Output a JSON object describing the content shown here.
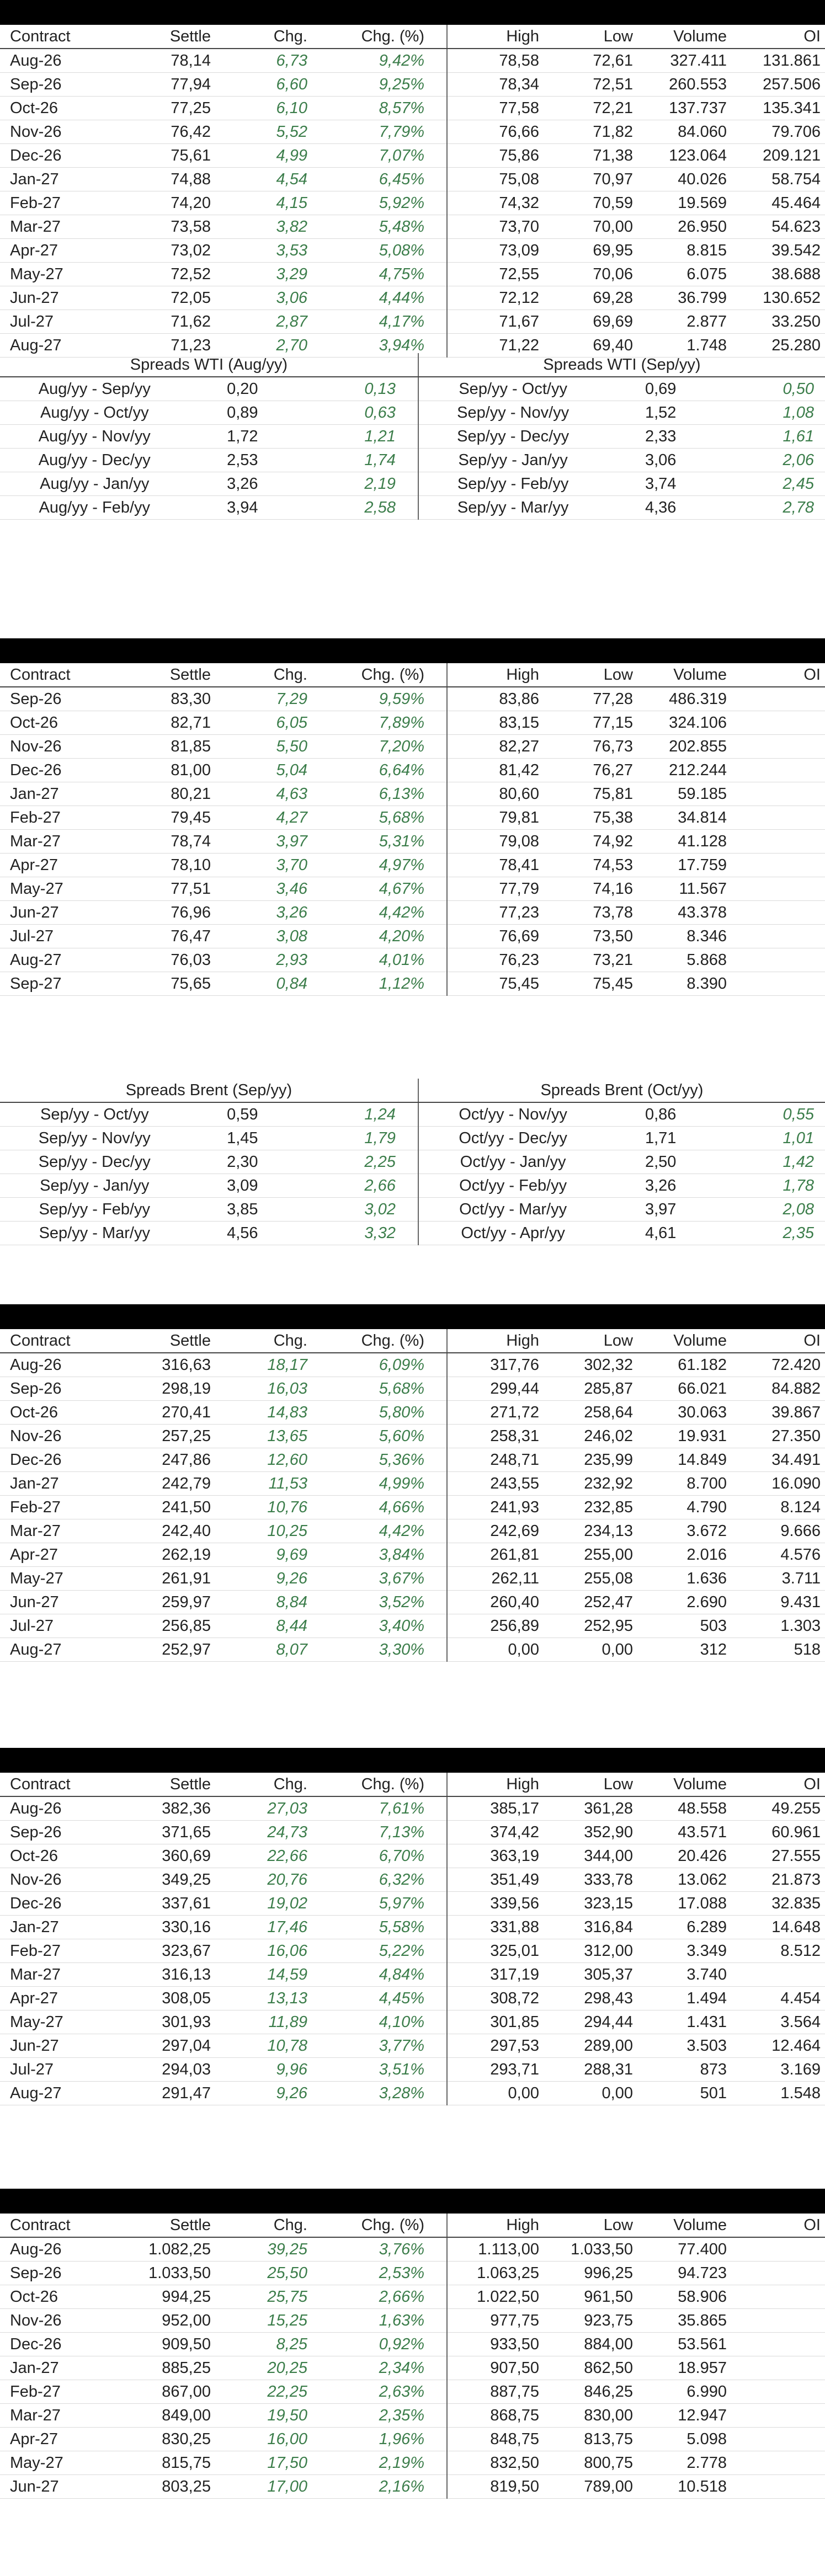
{
  "headers": [
    "Contract",
    "Settle",
    "Chg.",
    "Chg. (%)",
    "High",
    "Low",
    "Volume",
    "OI"
  ],
  "wti": {
    "rows": [
      [
        "Aug-26",
        "78,14",
        "6,73",
        "9,42%",
        "78,58",
        "72,61",
        "327.411",
        "131.861"
      ],
      [
        "Sep-26",
        "77,94",
        "6,60",
        "9,25%",
        "78,34",
        "72,51",
        "260.553",
        "257.506"
      ],
      [
        "Oct-26",
        "77,25",
        "6,10",
        "8,57%",
        "77,58",
        "72,21",
        "137.737",
        "135.341"
      ],
      [
        "Nov-26",
        "76,42",
        "5,52",
        "7,79%",
        "76,66",
        "71,82",
        "84.060",
        "79.706"
      ],
      [
        "Dec-26",
        "75,61",
        "4,99",
        "7,07%",
        "75,86",
        "71,38",
        "123.064",
        "209.121"
      ],
      [
        "Jan-27",
        "74,88",
        "4,54",
        "6,45%",
        "75,08",
        "70,97",
        "40.026",
        "58.754"
      ],
      [
        "Feb-27",
        "74,20",
        "4,15",
        "5,92%",
        "74,32",
        "70,59",
        "19.569",
        "45.464"
      ],
      [
        "Mar-27",
        "73,58",
        "3,82",
        "5,48%",
        "73,70",
        "70,00",
        "26.950",
        "54.623"
      ],
      [
        "Apr-27",
        "73,02",
        "3,53",
        "5,08%",
        "73,09",
        "69,95",
        "8.815",
        "39.542"
      ],
      [
        "May-27",
        "72,52",
        "3,29",
        "4,75%",
        "72,55",
        "70,06",
        "6.075",
        "38.688"
      ],
      [
        "Jun-27",
        "72,05",
        "3,06",
        "4,44%",
        "72,12",
        "69,28",
        "36.799",
        "130.652"
      ],
      [
        "Jul-27",
        "71,62",
        "2,87",
        "4,17%",
        "71,67",
        "69,69",
        "2.877",
        "33.250"
      ],
      [
        "Aug-27",
        "71,23",
        "2,70",
        "3,94%",
        "71,22",
        "69,40",
        "1.748",
        "25.280"
      ]
    ]
  },
  "wti_spreads": {
    "left_title": "Spreads WTI (Aug/yy)",
    "right_title": "Spreads WTI (Sep/yy)",
    "rows": [
      [
        "Aug/yy - Sep/yy",
        "0,20",
        "0,13",
        "Sep/yy - Oct/yy",
        "0,69",
        "0,50"
      ],
      [
        "Aug/yy - Oct/yy",
        "0,89",
        "0,63",
        "Sep/yy - Nov/yy",
        "1,52",
        "1,08"
      ],
      [
        "Aug/yy - Nov/yy",
        "1,72",
        "1,21",
        "Sep/yy - Dec/yy",
        "2,33",
        "1,61"
      ],
      [
        "Aug/yy - Dec/yy",
        "2,53",
        "1,74",
        "Sep/yy - Jan/yy",
        "3,06",
        "2,06"
      ],
      [
        "Aug/yy - Jan/yy",
        "3,26",
        "2,19",
        "Sep/yy - Feb/yy",
        "3,74",
        "2,45"
      ],
      [
        "Aug/yy - Feb/yy",
        "3,94",
        "2,58",
        "Sep/yy - Mar/yy",
        "4,36",
        "2,78"
      ]
    ]
  },
  "brent": {
    "rows": [
      [
        "Sep-26",
        "83,30",
        "7,29",
        "9,59%",
        "83,86",
        "77,28",
        "486.319",
        ""
      ],
      [
        "Oct-26",
        "82,71",
        "6,05",
        "7,89%",
        "83,15",
        "77,15",
        "324.106",
        ""
      ],
      [
        "Nov-26",
        "81,85",
        "5,50",
        "7,20%",
        "82,27",
        "76,73",
        "202.855",
        ""
      ],
      [
        "Dec-26",
        "81,00",
        "5,04",
        "6,64%",
        "81,42",
        "76,27",
        "212.244",
        ""
      ],
      [
        "Jan-27",
        "80,21",
        "4,63",
        "6,13%",
        "80,60",
        "75,81",
        "59.185",
        ""
      ],
      [
        "Feb-27",
        "79,45",
        "4,27",
        "5,68%",
        "79,81",
        "75,38",
        "34.814",
        ""
      ],
      [
        "Mar-27",
        "78,74",
        "3,97",
        "5,31%",
        "79,08",
        "74,92",
        "41.128",
        ""
      ],
      [
        "Apr-27",
        "78,10",
        "3,70",
        "4,97%",
        "78,41",
        "74,53",
        "17.759",
        ""
      ],
      [
        "May-27",
        "77,51",
        "3,46",
        "4,67%",
        "77,79",
        "74,16",
        "11.567",
        ""
      ],
      [
        "Jun-27",
        "76,96",
        "3,26",
        "4,42%",
        "77,23",
        "73,78",
        "43.378",
        ""
      ],
      [
        "Jul-27",
        "76,47",
        "3,08",
        "4,20%",
        "76,69",
        "73,50",
        "8.346",
        ""
      ],
      [
        "Aug-27",
        "76,03",
        "2,93",
        "4,01%",
        "76,23",
        "73,21",
        "5.868",
        ""
      ],
      [
        "Sep-27",
        "75,65",
        "0,84",
        "1,12%",
        "75,45",
        "75,45",
        "8.390",
        ""
      ]
    ]
  },
  "brent_spreads": {
    "left_title": "Spreads Brent (Sep/yy)",
    "right_title": "Spreads Brent (Oct/yy)",
    "rows": [
      [
        "Sep/yy - Oct/yy",
        "0,59",
        "1,24",
        "Oct/yy - Nov/yy",
        "0,86",
        "0,55"
      ],
      [
        "Sep/yy - Nov/yy",
        "1,45",
        "1,79",
        "Oct/yy - Dec/yy",
        "1,71",
        "1,01"
      ],
      [
        "Sep/yy - Dec/yy",
        "2,30",
        "2,25",
        "Oct/yy - Jan/yy",
        "2,50",
        "1,42"
      ],
      [
        "Sep/yy - Jan/yy",
        "3,09",
        "2,66",
        "Oct/yy - Feb/yy",
        "3,26",
        "1,78"
      ],
      [
        "Sep/yy - Feb/yy",
        "3,85",
        "3,02",
        "Oct/yy - Mar/yy",
        "3,97",
        "2,08"
      ],
      [
        "Sep/yy - Mar/yy",
        "4,56",
        "3,32",
        "Oct/yy - Apr/yy",
        "4,61",
        "2,35"
      ]
    ]
  },
  "table3": {
    "rows": [
      [
        "Aug-26",
        "316,63",
        "18,17",
        "6,09%",
        "317,76",
        "302,32",
        "61.182",
        "72.420"
      ],
      [
        "Sep-26",
        "298,19",
        "16,03",
        "5,68%",
        "299,44",
        "285,87",
        "66.021",
        "84.882"
      ],
      [
        "Oct-26",
        "270,41",
        "14,83",
        "5,80%",
        "271,72",
        "258,64",
        "30.063",
        "39.867"
      ],
      [
        "Nov-26",
        "257,25",
        "13,65",
        "5,60%",
        "258,31",
        "246,02",
        "19.931",
        "27.350"
      ],
      [
        "Dec-26",
        "247,86",
        "12,60",
        "5,36%",
        "248,71",
        "235,99",
        "14.849",
        "34.491"
      ],
      [
        "Jan-27",
        "242,79",
        "11,53",
        "4,99%",
        "243,55",
        "232,92",
        "8.700",
        "16.090"
      ],
      [
        "Feb-27",
        "241,50",
        "10,76",
        "4,66%",
        "241,93",
        "232,85",
        "4.790",
        "8.124"
      ],
      [
        "Mar-27",
        "242,40",
        "10,25",
        "4,42%",
        "242,69",
        "234,13",
        "3.672",
        "9.666"
      ],
      [
        "Apr-27",
        "262,19",
        "9,69",
        "3,84%",
        "261,81",
        "255,00",
        "2.016",
        "4.576"
      ],
      [
        "May-27",
        "261,91",
        "9,26",
        "3,67%",
        "262,11",
        "255,08",
        "1.636",
        "3.711"
      ],
      [
        "Jun-27",
        "259,97",
        "8,84",
        "3,52%",
        "260,40",
        "252,47",
        "2.690",
        "9.431"
      ],
      [
        "Jul-27",
        "256,85",
        "8,44",
        "3,40%",
        "256,89",
        "252,95",
        "503",
        "1.303"
      ],
      [
        "Aug-27",
        "252,97",
        "8,07",
        "3,30%",
        "0,00",
        "0,00",
        "312",
        "518"
      ]
    ]
  },
  "table4": {
    "rows": [
      [
        "Aug-26",
        "382,36",
        "27,03",
        "7,61%",
        "385,17",
        "361,28",
        "48.558",
        "49.255"
      ],
      [
        "Sep-26",
        "371,65",
        "24,73",
        "7,13%",
        "374,42",
        "352,90",
        "43.571",
        "60.961"
      ],
      [
        "Oct-26",
        "360,69",
        "22,66",
        "6,70%",
        "363,19",
        "344,00",
        "20.426",
        "27.555"
      ],
      [
        "Nov-26",
        "349,25",
        "20,76",
        "6,32%",
        "351,49",
        "333,78",
        "13.062",
        "21.873"
      ],
      [
        "Dec-26",
        "337,61",
        "19,02",
        "5,97%",
        "339,56",
        "323,15",
        "17.088",
        "32.835"
      ],
      [
        "Jan-27",
        "330,16",
        "17,46",
        "5,58%",
        "331,88",
        "316,84",
        "6.289",
        "14.648"
      ],
      [
        "Feb-27",
        "323,67",
        "16,06",
        "5,22%",
        "325,01",
        "312,00",
        "3.349",
        "8.512"
      ],
      [
        "Mar-27",
        "316,13",
        "14,59",
        "4,84%",
        "317,19",
        "305,37",
        "3.740",
        ""
      ],
      [
        "Apr-27",
        "308,05",
        "13,13",
        "4,45%",
        "308,72",
        "298,43",
        "1.494",
        "4.454"
      ],
      [
        "May-27",
        "301,93",
        "11,89",
        "4,10%",
        "301,85",
        "294,44",
        "1.431",
        "3.564"
      ],
      [
        "Jun-27",
        "297,04",
        "10,78",
        "3,77%",
        "297,53",
        "289,00",
        "3.503",
        "12.464"
      ],
      [
        "Jul-27",
        "294,03",
        "9,96",
        "3,51%",
        "293,71",
        "288,31",
        "873",
        "3.169"
      ],
      [
        "Aug-27",
        "291,47",
        "9,26",
        "3,28%",
        "0,00",
        "0,00",
        "501",
        "1.548"
      ]
    ]
  },
  "table5": {
    "rows": [
      [
        "Aug-26",
        "1.082,25",
        "39,25",
        "3,76%",
        "1.113,00",
        "1.033,50",
        "77.400",
        ""
      ],
      [
        "Sep-26",
        "1.033,50",
        "25,50",
        "2,53%",
        "1.063,25",
        "996,25",
        "94.723",
        ""
      ],
      [
        "Oct-26",
        "994,25",
        "25,75",
        "2,66%",
        "1.022,50",
        "961,50",
        "58.906",
        ""
      ],
      [
        "Nov-26",
        "952,00",
        "15,25",
        "1,63%",
        "977,75",
        "923,75",
        "35.865",
        ""
      ],
      [
        "Dec-26",
        "909,50",
        "8,25",
        "0,92%",
        "933,50",
        "884,00",
        "53.561",
        ""
      ],
      [
        "Jan-27",
        "885,25",
        "20,25",
        "2,34%",
        "907,50",
        "862,50",
        "18.957",
        ""
      ],
      [
        "Feb-27",
        "867,00",
        "22,25",
        "2,63%",
        "887,75",
        "846,25",
        "6.990",
        ""
      ],
      [
        "Mar-27",
        "849,00",
        "19,50",
        "2,35%",
        "868,75",
        "830,00",
        "12.947",
        ""
      ],
      [
        "Apr-27",
        "830,25",
        "16,00",
        "1,96%",
        "848,75",
        "813,75",
        "5.098",
        ""
      ],
      [
        "May-27",
        "815,75",
        "17,50",
        "2,19%",
        "832,50",
        "800,75",
        "2.778",
        ""
      ],
      [
        "Jun-27",
        "803,25",
        "17,00",
        "2,16%",
        "819,50",
        "789,00",
        "10.518",
        ""
      ]
    ]
  }
}
